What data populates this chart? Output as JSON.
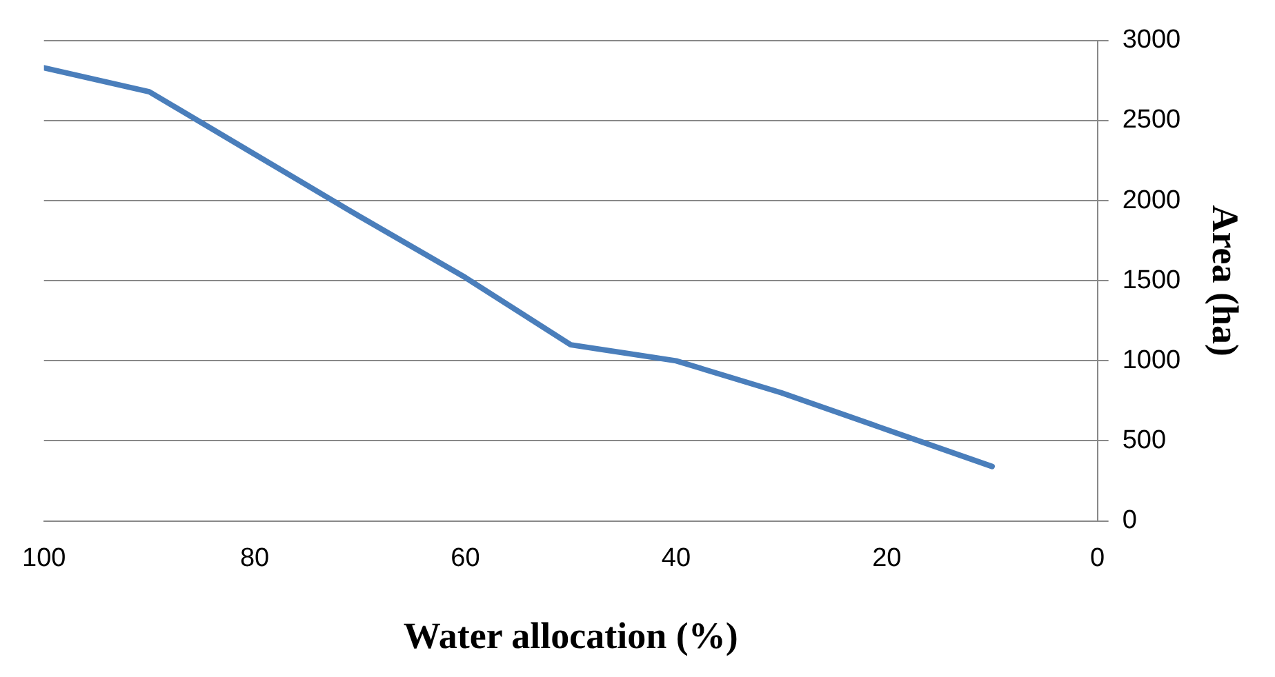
{
  "chart_data": {
    "type": "line",
    "xlabel": "Water allocation (%)",
    "ylabel": "Area (ha)",
    "x": [
      100,
      90,
      80,
      70,
      60,
      50,
      40,
      30,
      20,
      10
    ],
    "series": [
      {
        "color": "#4a7ebb",
        "values": [
          2830,
          2680,
          2290,
          1900,
          1520,
          1100,
          1000,
          800,
          570,
          340
        ]
      }
    ],
    "xlim": [
      100,
      0
    ],
    "xticks": [
      100,
      80,
      60,
      40,
      20,
      0
    ],
    "ylim": [
      0,
      3000
    ],
    "yticks": [
      0,
      500,
      1000,
      1500,
      2000,
      2500,
      3000
    ],
    "grid": "y",
    "legend": false,
    "marker": "none",
    "line_style": "solid"
  }
}
